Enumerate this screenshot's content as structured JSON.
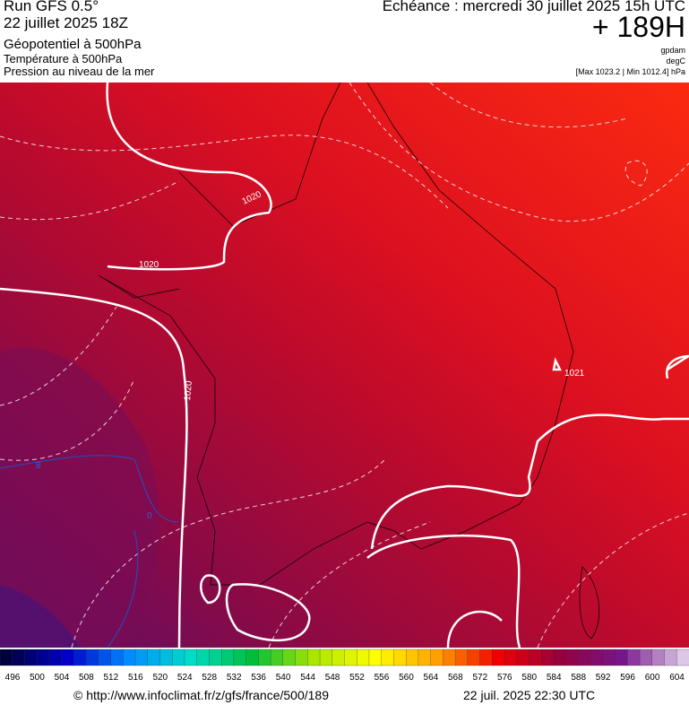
{
  "header": {
    "run": "Run GFS 0.5°",
    "run_date": "22 juillet 2025 18Z",
    "field_1": "Géopotentiel à 500hPa",
    "field_2": "Température à 500hPa",
    "field_3": "Pression au niveau de la mer",
    "valid_time": "Echéance : mercredi 30 juillet 2025 15h UTC",
    "lead": "+ 189H",
    "unit_1": "gpdam",
    "unit_2": "degC",
    "pressure_range": "[Max 1023.2 | Min 1012.4] hPa"
  },
  "map": {
    "contour_labels": [
      "1020",
      "1020",
      "1020",
      "1021",
      "8",
      "0"
    ]
  },
  "colorbar": {
    "labels": [
      "496",
      "500",
      "504",
      "508",
      "512",
      "516",
      "520",
      "524",
      "528",
      "532",
      "536",
      "540",
      "544",
      "548",
      "552",
      "556",
      "560",
      "564",
      "568",
      "572",
      "576",
      "580",
      "584",
      "588",
      "592",
      "596",
      "600",
      "604"
    ]
  },
  "footer": {
    "source": "© http://www.infoclimat.fr/z/gfs/france/500/189",
    "generated": "22 juil. 2025 22:30 UTC"
  }
}
